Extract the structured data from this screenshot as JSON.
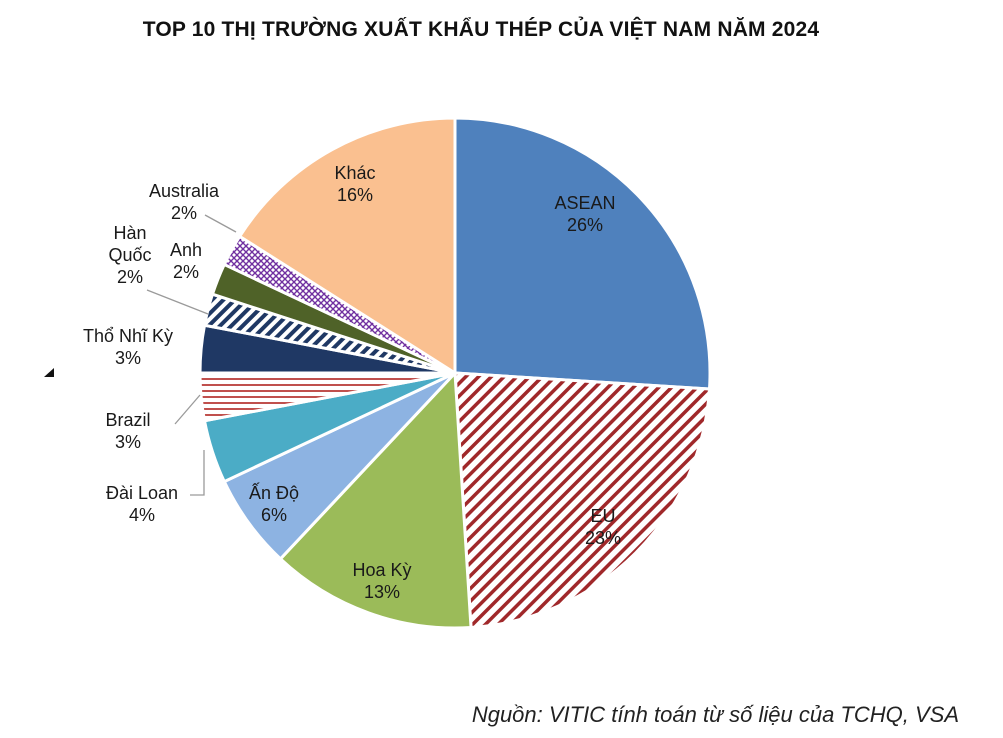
{
  "title": "TOP 10 THỊ TRƯỜNG XUẤT KHẨU THÉP CỦA VIỆT NAM NĂM 2024",
  "source": "Nguồn: VITIC tính toán từ số liệu của TCHQ, VSA",
  "chart_data": {
    "type": "pie",
    "title": "TOP 10 THỊ TRƯỜNG XUẤT KHẨU THÉP CỦA VIỆT NAM NĂM 2024",
    "slices": [
      {
        "name": "ASEAN",
        "value": 26,
        "label": "26%",
        "color": "#4f81bd",
        "pattern": "solid"
      },
      {
        "name": "EU",
        "value": 23,
        "label": "23%",
        "color": "#a0282a",
        "pattern": "diagonal-stripes"
      },
      {
        "name": "Hoa Kỳ",
        "value": 13,
        "label": "13%",
        "color": "#9bbb59",
        "pattern": "solid"
      },
      {
        "name": "Ấn Độ",
        "value": 6,
        "label": "6%",
        "color": "#8db3e2",
        "pattern": "solid"
      },
      {
        "name": "Đài Loan",
        "value": 4,
        "label": "4%",
        "color": "#4bacc6",
        "pattern": "solid"
      },
      {
        "name": "Brazil",
        "value": 3,
        "label": "3%",
        "color": "#c0504d",
        "pattern": "horizontal-stripes"
      },
      {
        "name": "Thổ Nhĩ Kỳ",
        "value": 3,
        "label": "3%",
        "color": "#1f3864",
        "pattern": "solid"
      },
      {
        "name": "Hàn Quốc",
        "value": 2,
        "label": "2%",
        "color": "#1f3864",
        "pattern": "diagonal-stripes"
      },
      {
        "name": "Anh",
        "value": 2,
        "label": "2%",
        "color": "#4f6228",
        "pattern": "solid"
      },
      {
        "name": "Australia",
        "value": 2,
        "label": "2%",
        "color": "#7030a0",
        "pattern": "crosshatch"
      },
      {
        "name": "Khác",
        "value": 16,
        "label": "16%",
        "color": "#fac090",
        "pattern": "solid"
      }
    ]
  }
}
